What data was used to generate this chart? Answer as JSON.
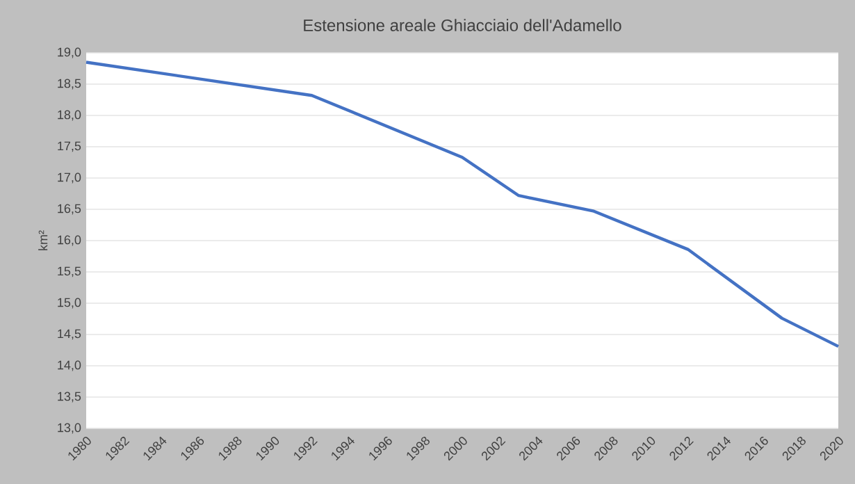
{
  "chart_data": {
    "type": "line",
    "title": "Estensione areale Ghiacciaio dell'Adamello",
    "ylabel": "km²",
    "x": [
      1980,
      1992,
      2000,
      2003,
      2007,
      2012,
      2017,
      2020
    ],
    "series": [
      {
        "color": "#4472c4",
        "values": [
          18.85,
          18.32,
          17.33,
          16.72,
          16.47,
          15.86,
          14.76,
          14.31
        ]
      }
    ],
    "xlim": [
      1980,
      2020
    ],
    "xticks": [
      1980,
      1982,
      1984,
      1986,
      1988,
      1990,
      1992,
      1994,
      1996,
      1998,
      2000,
      2002,
      2004,
      2006,
      2008,
      2010,
      2012,
      2014,
      2016,
      2018,
      2020
    ],
    "ylim": [
      13,
      19
    ],
    "yticks": [
      {
        "value": 13,
        "label": "13,0"
      },
      {
        "value": 13.5,
        "label": "13,5"
      },
      {
        "value": 14,
        "label": "14,0"
      },
      {
        "value": 14.5,
        "label": "14,5"
      },
      {
        "value": 15,
        "label": "15,0"
      },
      {
        "value": 15.5,
        "label": "15,5"
      },
      {
        "value": 16,
        "label": "16,0"
      },
      {
        "value": 16.5,
        "label": "16,5"
      },
      {
        "value": 17,
        "label": "17,0"
      },
      {
        "value": 17.5,
        "label": "17,5"
      },
      {
        "value": 18,
        "label": "18,0"
      },
      {
        "value": 18.5,
        "label": "18,5"
      },
      {
        "value": 19,
        "label": "19,0"
      }
    ],
    "grid": "y",
    "marker": "none",
    "line_style": "solid"
  }
}
